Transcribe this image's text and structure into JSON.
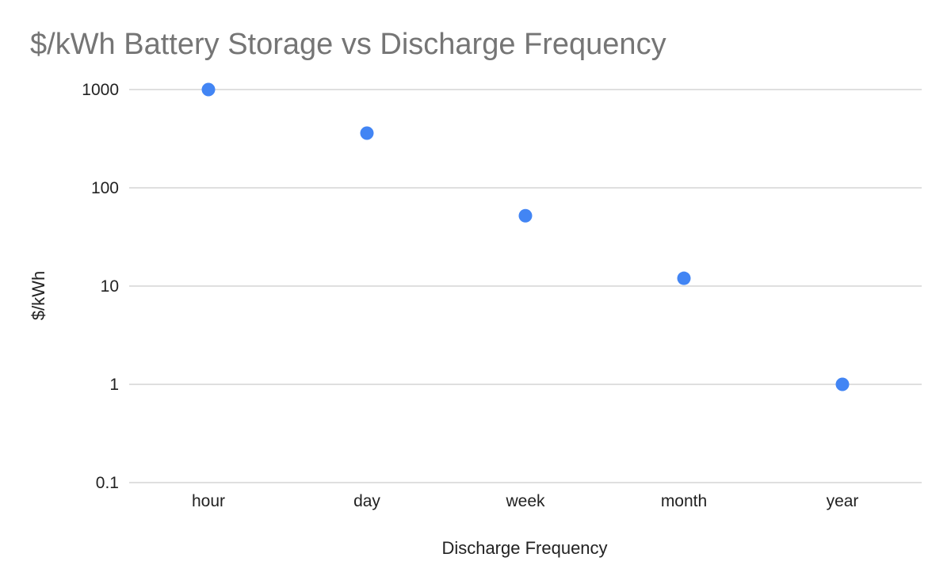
{
  "chart_data": {
    "type": "scatter",
    "title": "$/kWh Battery Storage vs Discharge Frequency",
    "xlabel": "Discharge Frequency",
    "ylabel": "$/kWh",
    "y_scale": "log",
    "ylim": [
      0.1,
      1000
    ],
    "y_ticks": [
      {
        "value": 0.1,
        "label": "0.1"
      },
      {
        "value": 1,
        "label": "1"
      },
      {
        "value": 10,
        "label": "10"
      },
      {
        "value": 100,
        "label": "100"
      },
      {
        "value": 1000,
        "label": "1000"
      }
    ],
    "categories": [
      "hour",
      "day",
      "week",
      "month",
      "year"
    ],
    "values": [
      1000,
      360,
      52,
      12,
      1
    ],
    "grid": true,
    "legend": "none",
    "marker_color": "#4285f4"
  }
}
